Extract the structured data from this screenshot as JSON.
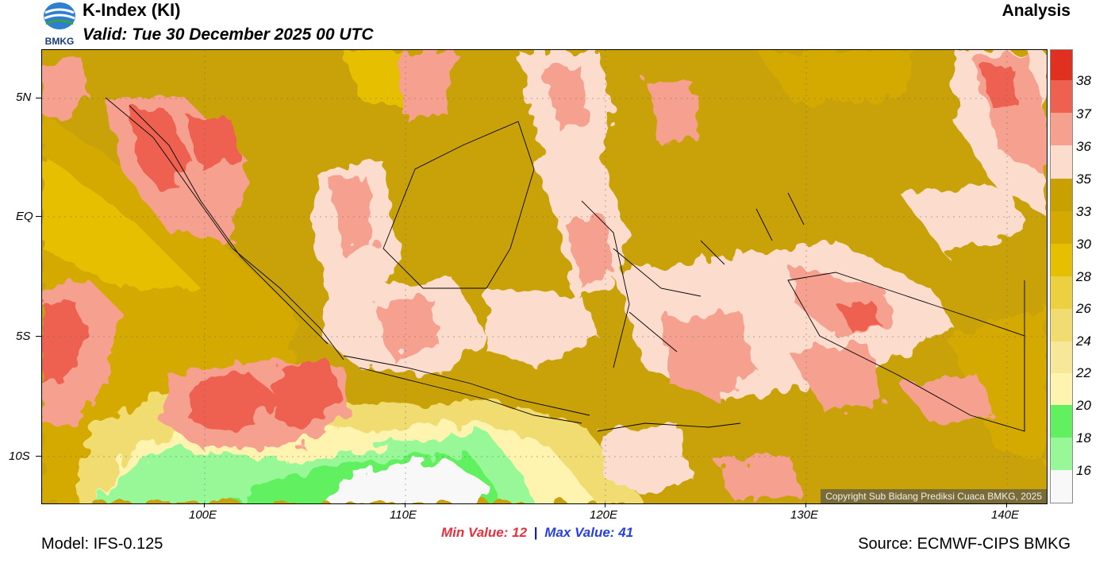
{
  "header": {
    "logo_text": "BMKG",
    "title": "K-Index (KI)",
    "valid": "Valid: Tue 30 December 2025 00 UTC",
    "run_type": "Analysis"
  },
  "map": {
    "y_labels": [
      "5N",
      "EQ",
      "5S",
      "10S"
    ],
    "x_labels": [
      "100E",
      "110E",
      "120E",
      "130E",
      "140E"
    ],
    "copyright": "Copyright Sub Bidang Prediksi Cuaca BMKG, 2025"
  },
  "stats": {
    "min_label": "Min Value:",
    "min_value": "12",
    "separator": "|",
    "max_label": "Max Value:",
    "max_value": "41"
  },
  "footer": {
    "model": "Model: IFS-0.125",
    "source": "Source: ECMWF-CIPS BMKG"
  },
  "colorbar": {
    "labels": [
      "38",
      "37",
      "36",
      "35",
      "33",
      "30",
      "28",
      "26",
      "24",
      "22",
      "20",
      "18",
      "16"
    ],
    "colors": [
      "#e03020",
      "#ee6050",
      "#f6a090",
      "#fcdccc",
      "#c8a000",
      "#d4aa00",
      "#e6c000",
      "#ecd040",
      "#f0dc70",
      "#f6e898",
      "#fef4b0",
      "#60f060",
      "#98f898",
      "#f8f8f8"
    ]
  }
}
